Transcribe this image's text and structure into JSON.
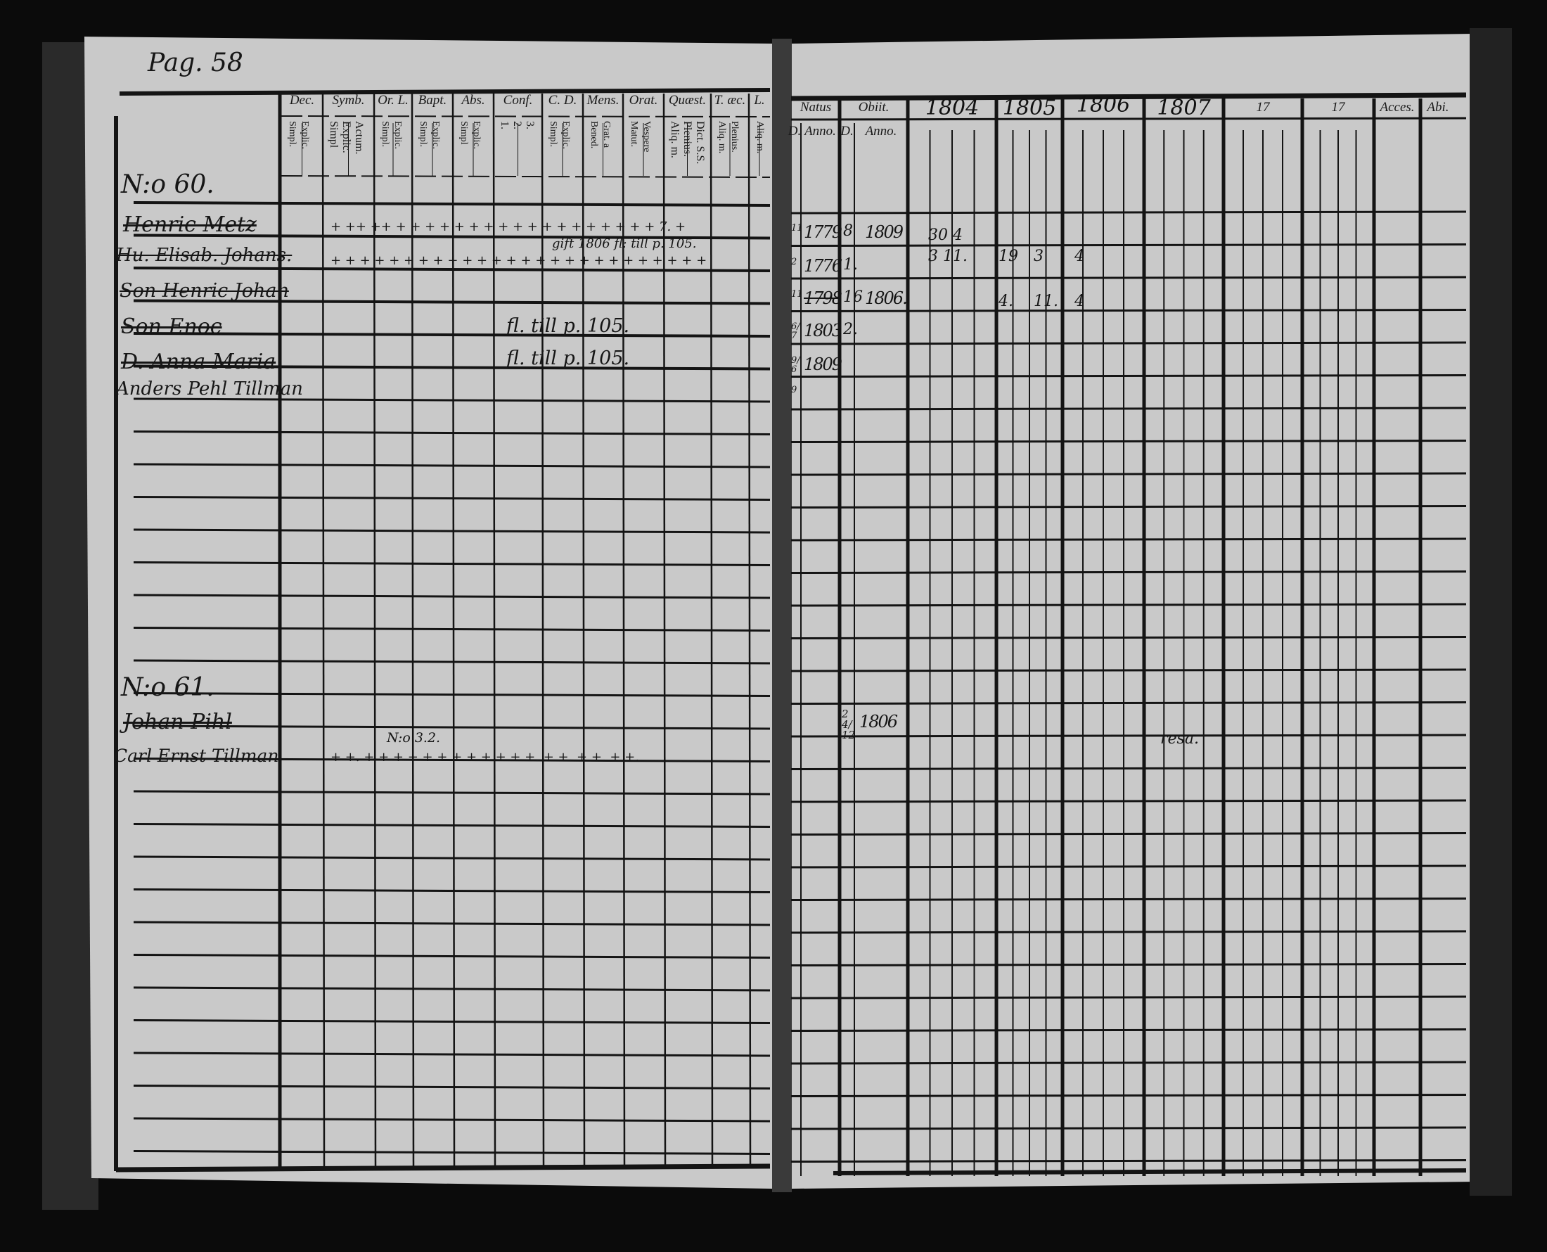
{
  "left_page": {
    "page_number": "Pag. 58",
    "column_headers": [
      {
        "label": "Dec.",
        "sub": "Explic.\nSimpl."
      },
      {
        "label": "Symb.",
        "sub": "Actum.\nExplic.\nSimpl"
      },
      {
        "label": "Or. L.",
        "sub": "Explic.\nSimpl."
      },
      {
        "label": "Bapt.",
        "sub": "Explic.\nSimpl."
      },
      {
        "label": "Abs.",
        "sub": "Explic.\nSimpl"
      },
      {
        "label": "Conf.",
        "sub": "3.\n2.\n1."
      },
      {
        "label": "C. D.",
        "sub": "Explic.\nSimpl."
      },
      {
        "label": "Mens.",
        "sub": "Grat. a\nBened."
      },
      {
        "label": "Orat.",
        "sub": "Vespere\nMatut."
      },
      {
        "label": "Quæst.",
        "sub": "Dict. S.S.\nPlenius.\nAliq. m."
      },
      {
        "label": "T. æc.",
        "sub": "Plenius.\nAliq. m."
      },
      {
        "label": "L.",
        "sub": "Aliq. m."
      }
    ],
    "households": [
      {
        "number": "N:o 60.",
        "members": [
          {
            "name": "Henric Metz",
            "marks": "+ ++ ++   + + + + + + + + + +   + + + + + + +   + 7. +"
          },
          {
            "name": "Hu. Elisab. Johans.",
            "note": "gift 1806  fl: till p. 105.",
            "marks": "+ + + + + + + + + + + + + + + + + + + + + + + + + +"
          },
          {
            "name": "Son Henric Johan",
            "note": "",
            "marks": ""
          },
          {
            "name": "Son Enoc",
            "note": "fl. till p. 105.",
            "marks": ""
          },
          {
            "name": "D. Anna Maria",
            "note": "fl. till p. 105.",
            "marks": ""
          },
          {
            "name": "Anders Pehl Tillman",
            "note": "",
            "marks": ""
          }
        ]
      },
      {
        "number": "N:o 61.",
        "members": [
          {
            "name": "Johan Pihl",
            "note": "",
            "marks": ""
          },
          {
            "name": "Carl Ernst Tillman",
            "note": "N:o 3.2.",
            "marks": "+ +.  + + +  + +  + +  + +  + + +.  + +.  + +.  + +."
          }
        ]
      }
    ]
  },
  "right_page": {
    "column_headers": {
      "natus": "Natus",
      "obiit": "Obiit.",
      "day": "D.",
      "year": "Anno.",
      "years": [
        "1804",
        "1805",
        "1806",
        "1807",
        "17",
        "17"
      ],
      "accessit": "Acces.",
      "abiit": "Abi."
    },
    "entries": [
      {
        "born_day": "11",
        "born_year": "1779",
        "obit_day": "8",
        "obit_year": "1809",
        "y1804": "30 4",
        "y1805a": "",
        "y1805b": "",
        "y1806": ""
      },
      {
        "born_day": "2",
        "born_year": "1776",
        "obit_day": "1.",
        "obit_year": "",
        "y1804": "3  11.",
        "y1805a": "19",
        "y1805b": "3",
        "y1806": "4"
      },
      {
        "born_day": "11",
        "born_year": "1798",
        "obit_day": "16",
        "obit_year": "1806.",
        "y1804": "",
        "y1805a": "4.",
        "y1805b": "11.",
        "y1806": "4"
      },
      {
        "born_day": "6/7",
        "born_year": "1803",
        "obit_day": "2.",
        "obit_year": "",
        "y1804": ""
      },
      {
        "born_day": "9/6",
        "born_year": "1809",
        "obit_day": "",
        "obit_year": ""
      },
      {
        "born_day": "9",
        "born_year": "",
        "obit_day": "",
        "obit_year": ""
      }
    ],
    "entry_61": {
      "obit_day": "24/12",
      "obit_year": "1806",
      "remark": "resa."
    }
  },
  "colors": {
    "paper": "#c9c9c9",
    "ink": "#141414",
    "background": "#0b0b0b"
  }
}
